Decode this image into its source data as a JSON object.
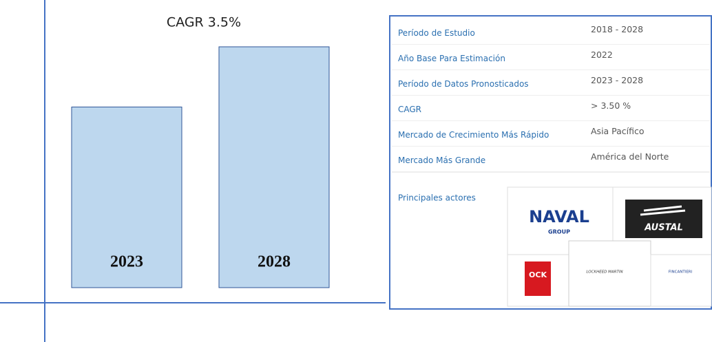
{
  "chart_data": {
    "type": "bar",
    "title": "CAGR 3.5%",
    "categories": [
      "2023",
      "2028"
    ],
    "values": [
      75,
      100
    ],
    "ylim": [
      0,
      100
    ],
    "color": "#bdd7ee",
    "edge": "#2f5597"
  },
  "table": {
    "rows": [
      [
        "Período de Estudio",
        "2018 - 2028"
      ],
      [
        "Año Base Para Estimación",
        "2022"
      ],
      [
        "Período de Datos Pronosticados",
        "2023 - 2028"
      ],
      [
        "CAGR",
        "> 3.50 %"
      ],
      [
        "Mercado de Crecimiento Más Rápido",
        "Asia Pacífico"
      ],
      [
        "Mercado Más Grande",
        "América del Norte"
      ]
    ],
    "players_label": "Principales actores",
    "logos": [
      "NAVAL",
      "GROUP",
      "AUSTAL",
      "OCK",
      "LOCKHEED MARTIN",
      "FINCANTIERI"
    ]
  }
}
